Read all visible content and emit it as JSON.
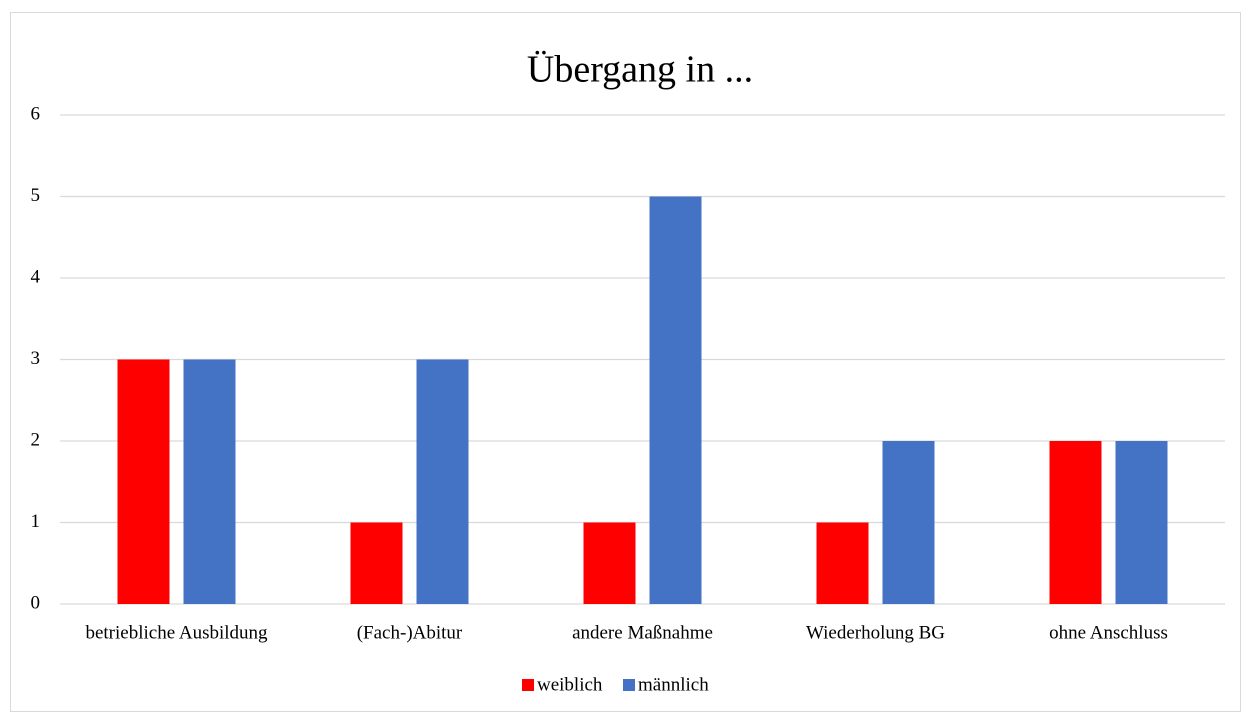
{
  "chart_data": {
    "type": "bar",
    "title": "Übergang in ...",
    "categories": [
      "betriebliche Ausbildung",
      "(Fach-)Abitur",
      "andere Maßnahme",
      "Wiederholung BG",
      "ohne Anschluss"
    ],
    "series": [
      {
        "name": "weiblich",
        "color": "#ff0000",
        "values": [
          3,
          1,
          1,
          1,
          2
        ]
      },
      {
        "name": "männlich",
        "color": "#4472c4",
        "values": [
          3,
          3,
          5,
          2,
          2
        ]
      }
    ],
    "ylim": [
      0,
      6
    ],
    "yticks": [
      0,
      1,
      2,
      3,
      4,
      5,
      6
    ],
    "grid": true,
    "legend": "bottom"
  }
}
